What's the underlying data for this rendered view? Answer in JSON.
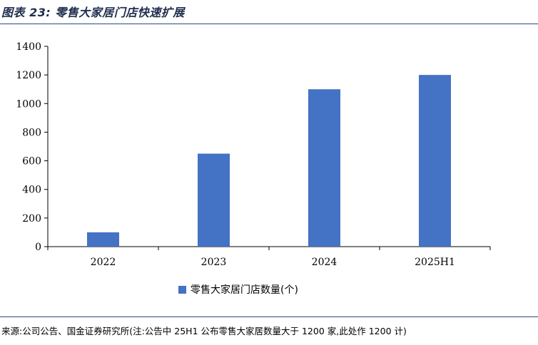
{
  "header": {
    "title": "图表 23:  零售大家居门店快速扩展"
  },
  "footer": {
    "source": "来源:公司公告、国金证券研究所(注:公告中 25H1 公布零售大家居数量大于 1200 家,此处作 1200 计)"
  },
  "colors": {
    "bar": "#4472c4",
    "rule": "#2b4a7a",
    "title": "#1f2e4d"
  },
  "chart_data": {
    "type": "bar",
    "categories": [
      "2022",
      "2023",
      "2024",
      "2025H1"
    ],
    "series": [
      {
        "name": "零售大家居门店数量(个)",
        "values": [
          100,
          650,
          1100,
          1200
        ]
      }
    ],
    "ylim": [
      0,
      1400
    ],
    "yticks": [
      0,
      200,
      400,
      600,
      800,
      1000,
      1200,
      1400
    ],
    "legend": "bottom",
    "grid": false
  }
}
